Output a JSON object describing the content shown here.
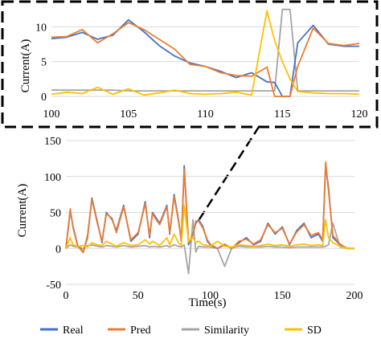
{
  "colors": {
    "real": "#4472C4",
    "pred": "#ED7D31",
    "similarity": "#A5A5A5",
    "sd": "#FFC000"
  },
  "chart_data": [
    {
      "type": "line",
      "panel": "inset-zoom",
      "ylabel": "Current(A)",
      "xlabel": "",
      "xlim": [
        100,
        120
      ],
      "ylim": [
        0,
        12
      ],
      "xticks": [
        "100",
        "105",
        "110",
        "115",
        "120"
      ],
      "yticks": [
        "0",
        "5",
        "10"
      ],
      "grid": "horizontal",
      "x": [
        100,
        101,
        102,
        103,
        104,
        105,
        106,
        107,
        108,
        109,
        110,
        111,
        112,
        113,
        114,
        114.5,
        115,
        115.5,
        116,
        117,
        118,
        119,
        120
      ],
      "series": [
        {
          "name": "Real",
          "values": [
            8.3,
            8.5,
            9.2,
            8.2,
            8.8,
            11,
            9.3,
            7.3,
            5.8,
            4.8,
            4.3,
            3.6,
            2.7,
            3.4,
            2.1,
            2.0,
            0,
            0,
            7.7,
            10.2,
            7.5,
            7.2,
            7.2
          ]
        },
        {
          "name": "Pred",
          "values": [
            8.5,
            8.6,
            9.6,
            7.7,
            9.0,
            10.6,
            9.6,
            8.2,
            6.8,
            4.6,
            4.3,
            3.4,
            3.0,
            2.9,
            4.2,
            0,
            0,
            0,
            4.3,
            9.8,
            7.6,
            7.3,
            7.6
          ]
        },
        {
          "name": "Similarity",
          "values": [
            0.9,
            0.9,
            0.9,
            0.9,
            0.9,
            0.8,
            0.8,
            0.8,
            0.8,
            0.8,
            0.8,
            0.8,
            0.8,
            0.8,
            0.8,
            0.8,
            12.5,
            12.5,
            0.8,
            0.8,
            0.8,
            0.8,
            0.8
          ]
        },
        {
          "name": "SD",
          "values": [
            0.3,
            0.6,
            0.4,
            1.3,
            0.3,
            1.1,
            0.2,
            0.5,
            0.9,
            0.4,
            0.3,
            0.4,
            0.6,
            0.2,
            12.3,
            8.0,
            5.0,
            2.5,
            0.7,
            0.5,
            0.4,
            0.4,
            0.3
          ]
        }
      ]
    },
    {
      "type": "line",
      "panel": "main",
      "xlabel": "Time(s)",
      "ylabel": "Current(A)",
      "xlim": [
        0,
        200
      ],
      "ylim": [
        -50,
        150
      ],
      "xticks": [
        "0",
        "50",
        "100",
        "150",
        "200"
      ],
      "yticks": [
        "-50",
        "0",
        "50",
        "100",
        "150"
      ],
      "grid": "horizontal",
      "x": [
        0,
        3,
        5,
        8,
        12,
        15,
        18,
        22,
        25,
        28,
        32,
        35,
        40,
        45,
        50,
        55,
        58,
        60,
        65,
        70,
        72,
        75,
        78,
        80,
        82,
        85,
        88,
        90,
        92,
        95,
        98,
        100,
        105,
        110,
        115,
        120,
        125,
        130,
        135,
        140,
        145,
        150,
        155,
        160,
        165,
        170,
        175,
        178,
        180,
        182,
        185,
        190,
        195,
        200
      ],
      "series": [
        {
          "name": "Real",
          "values": [
            0,
            52,
            30,
            5,
            -5,
            15,
            70,
            35,
            8,
            50,
            40,
            25,
            60,
            10,
            20,
            65,
            15,
            50,
            35,
            60,
            20,
            75,
            40,
            10,
            115,
            5,
            20,
            35,
            40,
            30,
            10,
            5,
            0,
            5,
            0,
            8,
            15,
            5,
            10,
            35,
            20,
            30,
            5,
            25,
            35,
            15,
            20,
            10,
            115,
            85,
            15,
            5,
            0,
            0
          ]
        },
        {
          "name": "Pred",
          "values": [
            0,
            55,
            28,
            4,
            -6,
            18,
            68,
            33,
            10,
            48,
            42,
            22,
            58,
            12,
            22,
            62,
            18,
            48,
            33,
            58,
            22,
            72,
            38,
            12,
            110,
            8,
            18,
            38,
            38,
            28,
            12,
            6,
            0,
            6,
            0,
            10,
            13,
            6,
            12,
            33,
            22,
            28,
            6,
            23,
            33,
            18,
            22,
            12,
            120,
            80,
            18,
            6,
            0,
            0
          ]
        },
        {
          "name": "Similarity",
          "values": [
            0,
            5,
            3,
            2,
            0,
            4,
            5,
            3,
            2,
            4,
            3,
            2,
            4,
            2,
            3,
            4,
            2,
            3,
            2,
            4,
            2,
            5,
            3,
            2,
            5,
            -35,
            40,
            -5,
            3,
            2,
            2,
            2,
            0,
            -25,
            1,
            3,
            2,
            2,
            2,
            3,
            2,
            2,
            1,
            2,
            2,
            2,
            2,
            2,
            3,
            5,
            35,
            2,
            0,
            0
          ]
        },
        {
          "name": "SD",
          "values": [
            0,
            15,
            5,
            3,
            4,
            2,
            8,
            5,
            4,
            10,
            6,
            3,
            8,
            4,
            5,
            12,
            6,
            10,
            4,
            15,
            5,
            20,
            8,
            4,
            60,
            10,
            15,
            8,
            10,
            5,
            4,
            3,
            10,
            3,
            2,
            5,
            4,
            3,
            4,
            6,
            4,
            5,
            3,
            5,
            6,
            4,
            5,
            4,
            40,
            15,
            8,
            3,
            0,
            0
          ]
        }
      ]
    }
  ],
  "legend": [
    {
      "label": "Real",
      "color": "#4472C4"
    },
    {
      "label": "Pred",
      "color": "#ED7D31"
    },
    {
      "label": "Similarity",
      "color": "#A5A5A5"
    },
    {
      "label": "SD",
      "color": "#FFC000"
    }
  ]
}
